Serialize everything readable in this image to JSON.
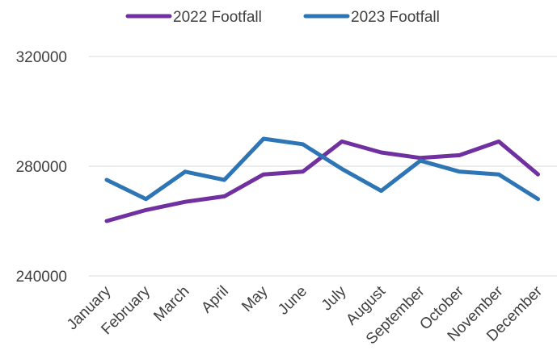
{
  "chart_data": {
    "type": "line",
    "title": "",
    "xlabel": "",
    "ylabel": "",
    "categories": [
      "January",
      "February",
      "March",
      "April",
      "May",
      "June",
      "July",
      "August",
      "September",
      "October",
      "November",
      "December"
    ],
    "ylim": [
      240000,
      320000
    ],
    "yticks": [
      240000,
      280000,
      320000
    ],
    "grid": true,
    "legend_position": "top",
    "series": [
      {
        "name": "2022 Footfall",
        "color": "#7030a0",
        "values": [
          260000,
          264000,
          267000,
          269000,
          277000,
          278000,
          289000,
          285000,
          283000,
          284000,
          289000,
          277000
        ]
      },
      {
        "name": "2023 Footfall",
        "color": "#2e75b6",
        "values": [
          275000,
          268000,
          278000,
          275000,
          290000,
          288000,
          279000,
          271000,
          282000,
          278000,
          277000,
          268000
        ]
      }
    ]
  }
}
